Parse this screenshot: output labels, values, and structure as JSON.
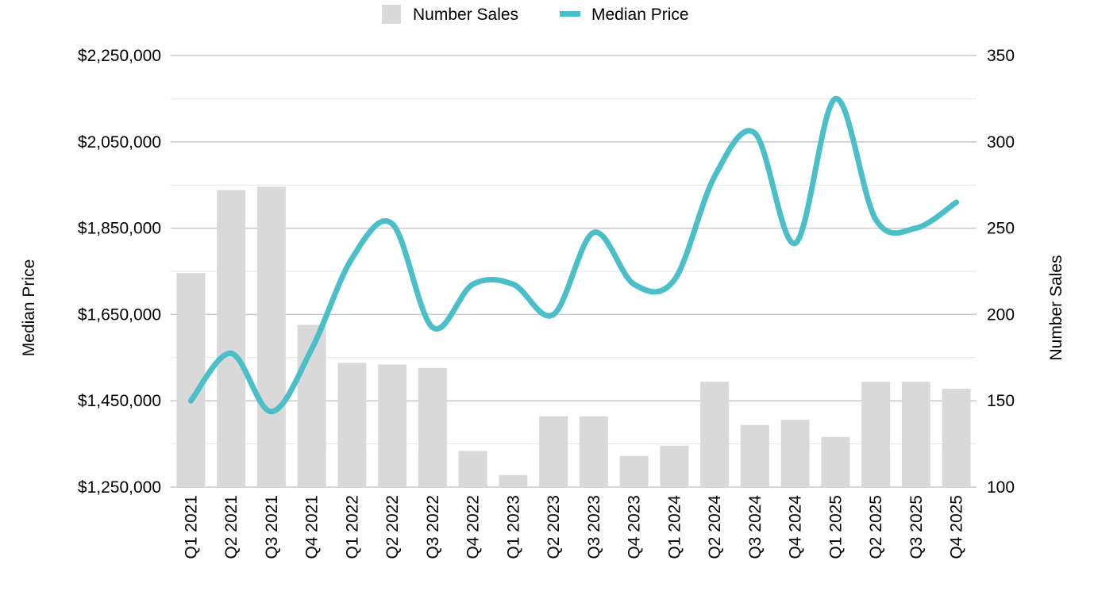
{
  "chart_data": {
    "type": "bar",
    "categories": [
      "Q1 2021",
      "Q2 2021",
      "Q3 2021",
      "Q4 2021",
      "Q1 2022",
      "Q2 2022",
      "Q3 2022",
      "Q4 2022",
      "Q1 2023",
      "Q2 2023",
      "Q3 2023",
      "Q4 2023",
      "Q1 2024",
      "Q2 2024",
      "Q3 2024",
      "Q4 2024",
      "Q1 2025",
      "Q2 2025",
      "Q3 2025",
      "Q4 2025"
    ],
    "series": [
      {
        "name": "Number Sales",
        "type": "bar",
        "axis": "right",
        "color": "#d9d9d9",
        "values": [
          224,
          272,
          274,
          194,
          172,
          171,
          169,
          121,
          107,
          141,
          141,
          118,
          124,
          161,
          136,
          139,
          129,
          161,
          161,
          157
        ]
      },
      {
        "name": "Median Price",
        "type": "line",
        "axis": "left",
        "color": "#4bbfc7",
        "values": [
          1450000,
          1560000,
          1425000,
          1570000,
          1780000,
          1860000,
          1620000,
          1720000,
          1720000,
          1650000,
          1840000,
          1720000,
          1730000,
          1970000,
          2070000,
          1815000,
          2150000,
          1870000,
          1850000,
          1910000
        ]
      }
    ],
    "y_left": {
      "label": "Median Price",
      "lim": [
        1250000,
        2250000
      ],
      "ticks": [
        "$1,250,000",
        "$1,450,000",
        "$1,650,000",
        "$1,850,000",
        "$2,050,000",
        "$2,250,000"
      ]
    },
    "y_right": {
      "label": "Number Sales",
      "lim": [
        100,
        350
      ],
      "ticks": [
        "100",
        "150",
        "200",
        "250",
        "300",
        "350"
      ]
    },
    "legend": {
      "position": "top-center",
      "items": [
        "Number Sales",
        "Median Price"
      ]
    },
    "grid": true
  }
}
